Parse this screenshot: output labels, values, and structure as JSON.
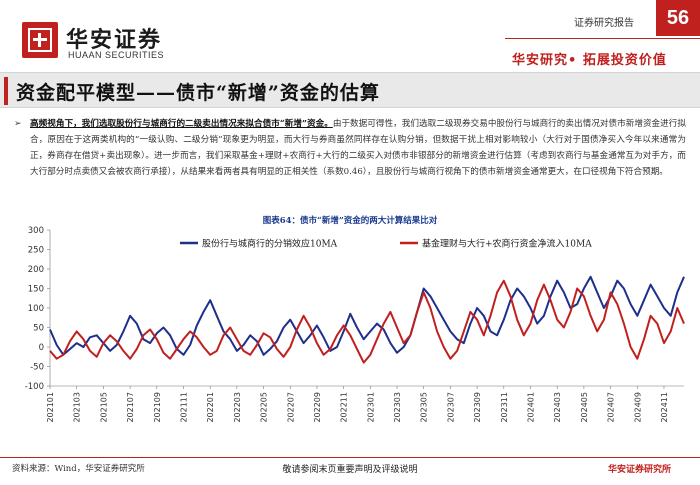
{
  "header": {
    "brand_cn": "华安证券",
    "brand_en": "HUAAN SECURITIES",
    "report_type": "证券研究报告",
    "page_number": "56",
    "slogan": "华安研究• 拓展投资价值",
    "accent_color": "#c0201e"
  },
  "section": {
    "title": "资金配平模型——债市“新增”资金的估算"
  },
  "body": {
    "bullet": "➢",
    "lead": "高频视角下，我们选取股份行与城商行的二级卖出情况来拟合债市“新增”资金。",
    "text": "由于数据可得性，我们选取二级现券交易中股份行与城商行的卖出情况对债市新增资金进行拟合，原因在于这两类机构的“一级认购、二级分销”现象更为明显，而大行与券商虽然同样存在认购分销，但数据干扰上相对影响较小（大行对于国债净买入今年以来通常为正，券商存在借贷+卖出现象）。进一步而言，我们采取基金+理财+农商行+大行的二级买入对债市非银部分的新增资金进行估算（考虑到农商行与基金通常互为对手方，而大行部分时点卖债又会被农商行承接），从结果来看两者具有明显的正相关性（系数0.46），且股份行与城商行视角下的债市新增资金通常更大，在口径视角下符合预期。"
  },
  "chart": {
    "title": "图表64：债市“新增”资金的两大计算结果比对",
    "source": "资料来源：Wind，华安证券研究所"
  },
  "chart_data": {
    "type": "line",
    "ylim": [
      -100,
      300
    ],
    "yticks": [
      -100,
      -50,
      0,
      50,
      100,
      150,
      200,
      250,
      300
    ],
    "x_categories": [
      "202101",
      "202103",
      "202105",
      "202107",
      "202109",
      "202111",
      "202201",
      "202203",
      "202205",
      "202207",
      "202209",
      "202211",
      "202301",
      "202303",
      "202305",
      "202307",
      "202309",
      "202311",
      "202401",
      "202403",
      "202405",
      "202407",
      "202409",
      "202411"
    ],
    "x_range": [
      0,
      47.5
    ],
    "series": [
      {
        "name": "股份行与城商行的分销效应10MA",
        "color": "#1e2f8c",
        "points": [
          [
            0,
            45
          ],
          [
            0.5,
            5
          ],
          [
            1,
            -20
          ],
          [
            1.5,
            -5
          ],
          [
            2,
            10
          ],
          [
            2.5,
            0
          ],
          [
            3,
            25
          ],
          [
            3.5,
            30
          ],
          [
            4,
            10
          ],
          [
            4.5,
            -10
          ],
          [
            5,
            5
          ],
          [
            5.5,
            40
          ],
          [
            6,
            80
          ],
          [
            6.5,
            60
          ],
          [
            7,
            20
          ],
          [
            7.5,
            10
          ],
          [
            8,
            35
          ],
          [
            8.5,
            50
          ],
          [
            9,
            30
          ],
          [
            9.5,
            -5
          ],
          [
            10,
            -20
          ],
          [
            10.5,
            5
          ],
          [
            11,
            55
          ],
          [
            11.5,
            90
          ],
          [
            12,
            120
          ],
          [
            12.5,
            80
          ],
          [
            13,
            40
          ],
          [
            13.5,
            20
          ],
          [
            14,
            -10
          ],
          [
            14.5,
            5
          ],
          [
            15,
            30
          ],
          [
            15.5,
            15
          ],
          [
            16,
            -20
          ],
          [
            16.5,
            -5
          ],
          [
            17,
            15
          ],
          [
            17.5,
            50
          ],
          [
            18,
            70
          ],
          [
            18.5,
            40
          ],
          [
            19,
            10
          ],
          [
            19.5,
            30
          ],
          [
            20,
            55
          ],
          [
            20.5,
            25
          ],
          [
            21,
            -10
          ],
          [
            21.5,
            0
          ],
          [
            22,
            40
          ],
          [
            22.5,
            85
          ],
          [
            23,
            50
          ],
          [
            23.5,
            20
          ],
          [
            24,
            40
          ],
          [
            24.5,
            60
          ],
          [
            25,
            45
          ],
          [
            25.5,
            10
          ],
          [
            26,
            -15
          ],
          [
            26.5,
            0
          ],
          [
            27,
            30
          ],
          [
            27.5,
            90
          ],
          [
            28,
            150
          ],
          [
            28.5,
            130
          ],
          [
            29,
            100
          ],
          [
            29.5,
            70
          ],
          [
            30,
            40
          ],
          [
            30.5,
            20
          ],
          [
            31,
            10
          ],
          [
            31.5,
            60
          ],
          [
            32,
            100
          ],
          [
            32.5,
            80
          ],
          [
            33,
            40
          ],
          [
            33.5,
            30
          ],
          [
            34,
            70
          ],
          [
            34.5,
            120
          ],
          [
            35,
            150
          ],
          [
            35.5,
            130
          ],
          [
            36,
            100
          ],
          [
            36.5,
            60
          ],
          [
            37,
            80
          ],
          [
            37.5,
            130
          ],
          [
            38,
            170
          ],
          [
            38.5,
            140
          ],
          [
            39,
            100
          ],
          [
            39.5,
            110
          ],
          [
            40,
            150
          ],
          [
            40.5,
            180
          ],
          [
            41,
            140
          ],
          [
            41.5,
            100
          ],
          [
            42,
            130
          ],
          [
            42.5,
            170
          ],
          [
            43,
            150
          ],
          [
            43.5,
            110
          ],
          [
            44,
            80
          ],
          [
            44.5,
            120
          ],
          [
            45,
            160
          ],
          [
            45.5,
            130
          ],
          [
            46,
            100
          ],
          [
            46.5,
            80
          ],
          [
            47,
            140
          ],
          [
            47.5,
            180
          ]
        ]
      },
      {
        "name": "基金理财与大行+农商行资金净流入10MA",
        "color": "#c0201e",
        "points": [
          [
            0,
            -10
          ],
          [
            0.5,
            -30
          ],
          [
            1,
            -20
          ],
          [
            1.5,
            15
          ],
          [
            2,
            40
          ],
          [
            2.5,
            20
          ],
          [
            3,
            -10
          ],
          [
            3.5,
            -25
          ],
          [
            4,
            10
          ],
          [
            4.5,
            30
          ],
          [
            5,
            15
          ],
          [
            5.5,
            -10
          ],
          [
            6,
            -30
          ],
          [
            6.5,
            -5
          ],
          [
            7,
            30
          ],
          [
            7.5,
            45
          ],
          [
            8,
            20
          ],
          [
            8.5,
            -15
          ],
          [
            9,
            -30
          ],
          [
            9.5,
            -5
          ],
          [
            10,
            20
          ],
          [
            10.5,
            40
          ],
          [
            11,
            25
          ],
          [
            11.5,
            0
          ],
          [
            12,
            -20
          ],
          [
            12.5,
            -10
          ],
          [
            13,
            30
          ],
          [
            13.5,
            50
          ],
          [
            14,
            20
          ],
          [
            14.5,
            -10
          ],
          [
            15,
            -20
          ],
          [
            15.5,
            5
          ],
          [
            16,
            35
          ],
          [
            16.5,
            25
          ],
          [
            17,
            -5
          ],
          [
            17.5,
            -25
          ],
          [
            18,
            0
          ],
          [
            18.5,
            45
          ],
          [
            19,
            80
          ],
          [
            19.5,
            50
          ],
          [
            20,
            10
          ],
          [
            20.5,
            -20
          ],
          [
            21,
            -5
          ],
          [
            21.5,
            30
          ],
          [
            22,
            55
          ],
          [
            22.5,
            30
          ],
          [
            23,
            -5
          ],
          [
            23.5,
            -40
          ],
          [
            24,
            -20
          ],
          [
            24.5,
            20
          ],
          [
            25,
            60
          ],
          [
            25.5,
            90
          ],
          [
            26,
            50
          ],
          [
            26.5,
            10
          ],
          [
            27,
            30
          ],
          [
            27.5,
            90
          ],
          [
            28,
            140
          ],
          [
            28.5,
            100
          ],
          [
            29,
            40
          ],
          [
            29.5,
            0
          ],
          [
            30,
            -30
          ],
          [
            30.5,
            -10
          ],
          [
            31,
            40
          ],
          [
            31.5,
            90
          ],
          [
            32,
            70
          ],
          [
            32.5,
            30
          ],
          [
            33,
            80
          ],
          [
            33.5,
            140
          ],
          [
            34,
            170
          ],
          [
            34.5,
            130
          ],
          [
            35,
            70
          ],
          [
            35.5,
            30
          ],
          [
            36,
            60
          ],
          [
            36.5,
            120
          ],
          [
            37,
            160
          ],
          [
            37.5,
            120
          ],
          [
            38,
            70
          ],
          [
            38.5,
            50
          ],
          [
            39,
            90
          ],
          [
            39.5,
            150
          ],
          [
            40,
            130
          ],
          [
            40.5,
            80
          ],
          [
            41,
            40
          ],
          [
            41.5,
            70
          ],
          [
            42,
            140
          ],
          [
            42.5,
            110
          ],
          [
            43,
            60
          ],
          [
            43.5,
            0
          ],
          [
            44,
            -30
          ],
          [
            44.5,
            20
          ],
          [
            45,
            80
          ],
          [
            45.5,
            60
          ],
          [
            46,
            10
          ],
          [
            46.5,
            40
          ],
          [
            47,
            100
          ],
          [
            47.5,
            60
          ]
        ]
      }
    ]
  },
  "footer": {
    "disclaimer": "敬请参阅末页重要声明及评级说明",
    "firm": "华安证券研究所"
  }
}
